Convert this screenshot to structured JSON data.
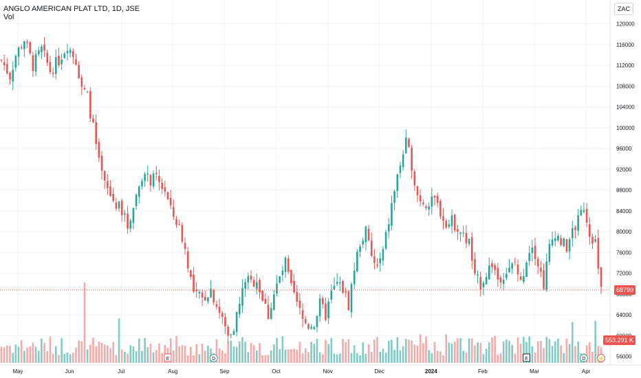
{
  "header": {
    "symbol_title": "ANGLO AMERICAN PLAT LTD, 1D, JSE",
    "volume_label": "Vol"
  },
  "scale": {
    "currency": "ZAC"
  },
  "colors": {
    "up": "#26a69a",
    "down": "#ef5350",
    "up_volume": "#80cbc4",
    "down_volume": "#f7a9a7",
    "last_price": "#ef5350",
    "grid": "#f0f3fa",
    "text": "#131722"
  },
  "chart_data": {
    "type": "candlestick",
    "title": "ANGLO AMERICAN PLAT LTD, 1D, JSE",
    "y_ticks": [
      56000,
      60000,
      64000,
      68000,
      72000,
      76000,
      80000,
      84000,
      88000,
      92000,
      96000,
      100000,
      104000,
      108000,
      112000,
      116000,
      120000
    ],
    "ylim": [
      54500,
      123000
    ],
    "x_labels": [
      "May",
      "Jun",
      "Jul",
      "Aug",
      "Sep",
      "Oct",
      "Nov",
      "Dec",
      "2024",
      "Feb",
      "Mar",
      "Apr"
    ],
    "last_price": 68799,
    "last_price_label": "68799",
    "last_volume_label": "553.291 K",
    "event_markers": [
      "E",
      "D",
      "E",
      "D",
      "⚡"
    ],
    "price_path": [
      {
        "t": 0,
        "price": 113000
      },
      {
        "t": 3,
        "price": 110000
      },
      {
        "t": 5,
        "price": 114000
      },
      {
        "t": 8,
        "price": 117000
      },
      {
        "t": 11,
        "price": 112000
      },
      {
        "t": 14,
        "price": 115000
      },
      {
        "t": 17,
        "price": 111000
      },
      {
        "t": 20,
        "price": 113000
      },
      {
        "t": 23,
        "price": 116000
      },
      {
        "t": 26,
        "price": 113000
      },
      {
        "t": 28,
        "price": 108000
      },
      {
        "t": 30,
        "price": 106000
      },
      {
        "t": 32,
        "price": 100000
      },
      {
        "t": 34,
        "price": 93000
      },
      {
        "t": 36,
        "price": 89000
      },
      {
        "t": 39,
        "price": 86000
      },
      {
        "t": 42,
        "price": 84000
      },
      {
        "t": 44,
        "price": 81000
      },
      {
        "t": 47,
        "price": 87000
      },
      {
        "t": 49,
        "price": 91000
      },
      {
        "t": 51,
        "price": 90000
      },
      {
        "t": 54,
        "price": 90000
      },
      {
        "t": 57,
        "price": 88000
      },
      {
        "t": 59,
        "price": 84000
      },
      {
        "t": 61,
        "price": 82000
      },
      {
        "t": 63,
        "price": 79000
      },
      {
        "t": 65,
        "price": 74000
      },
      {
        "t": 67,
        "price": 68000
      },
      {
        "t": 70,
        "price": 67000
      },
      {
        "t": 73,
        "price": 69000
      },
      {
        "t": 75,
        "price": 66000
      },
      {
        "t": 77,
        "price": 63000
      },
      {
        "t": 79,
        "price": 60000
      },
      {
        "t": 81,
        "price": 62000
      },
      {
        "t": 83,
        "price": 66000
      },
      {
        "t": 85,
        "price": 71000
      },
      {
        "t": 87,
        "price": 70000
      },
      {
        "t": 89,
        "price": 71000
      },
      {
        "t": 91,
        "price": 67000
      },
      {
        "t": 93,
        "price": 64000
      },
      {
        "t": 95,
        "price": 68000
      },
      {
        "t": 97,
        "price": 71000
      },
      {
        "t": 99,
        "price": 74000
      },
      {
        "t": 101,
        "price": 69000
      },
      {
        "t": 103,
        "price": 66000
      },
      {
        "t": 105,
        "price": 63000
      },
      {
        "t": 107,
        "price": 62000
      },
      {
        "t": 109,
        "price": 62500
      },
      {
        "t": 111,
        "price": 66000
      },
      {
        "t": 113,
        "price": 64000
      },
      {
        "t": 115,
        "price": 68000
      },
      {
        "t": 117,
        "price": 70000
      },
      {
        "t": 119,
        "price": 69000
      },
      {
        "t": 121,
        "price": 66000
      },
      {
        "t": 123,
        "price": 73000
      },
      {
        "t": 125,
        "price": 78000
      },
      {
        "t": 127,
        "price": 80000
      },
      {
        "t": 129,
        "price": 75000
      },
      {
        "t": 131,
        "price": 73000
      },
      {
        "t": 133,
        "price": 76000
      },
      {
        "t": 135,
        "price": 82000
      },
      {
        "t": 137,
        "price": 88000
      },
      {
        "t": 139,
        "price": 93000
      },
      {
        "t": 141,
        "price": 97000
      },
      {
        "t": 143,
        "price": 93000
      },
      {
        "t": 145,
        "price": 87000
      },
      {
        "t": 147,
        "price": 86000
      },
      {
        "t": 149,
        "price": 85000
      },
      {
        "t": 151,
        "price": 86000
      },
      {
        "t": 153,
        "price": 84000
      },
      {
        "t": 155,
        "price": 81000
      },
      {
        "t": 157,
        "price": 82000
      },
      {
        "t": 159,
        "price": 81000
      },
      {
        "t": 161,
        "price": 79000
      },
      {
        "t": 163,
        "price": 78000
      },
      {
        "t": 165,
        "price": 71000
      },
      {
        "t": 167,
        "price": 70000
      },
      {
        "t": 169,
        "price": 72000
      },
      {
        "t": 171,
        "price": 74000
      },
      {
        "t": 173,
        "price": 71000
      },
      {
        "t": 175,
        "price": 72000
      },
      {
        "t": 177,
        "price": 72500
      },
      {
        "t": 179,
        "price": 74000
      },
      {
        "t": 181,
        "price": 70000
      },
      {
        "t": 183,
        "price": 75000
      },
      {
        "t": 185,
        "price": 78000
      },
      {
        "t": 187,
        "price": 74000
      },
      {
        "t": 189,
        "price": 70000
      },
      {
        "t": 191,
        "price": 77000
      },
      {
        "t": 193,
        "price": 80000
      },
      {
        "t": 195,
        "price": 78000
      },
      {
        "t": 197,
        "price": 77000
      },
      {
        "t": 199,
        "price": 80000
      },
      {
        "t": 201,
        "price": 82000
      },
      {
        "t": 203,
        "price": 85000
      },
      {
        "t": 205,
        "price": 80000
      },
      {
        "t": 207,
        "price": 78000
      },
      {
        "t": 208,
        "price": 73000
      },
      {
        "t": 209,
        "price": 68799
      }
    ],
    "volume_spikes": [
      {
        "t": 29,
        "volume": 6.5
      },
      {
        "t": 41,
        "volume": 3.6
      },
      {
        "t": 146,
        "volume": 2.3
      },
      {
        "t": 155,
        "volume": 2.3
      },
      {
        "t": 199,
        "volume": 3.3
      },
      {
        "t": 207,
        "volume": 3.4
      }
    ]
  }
}
